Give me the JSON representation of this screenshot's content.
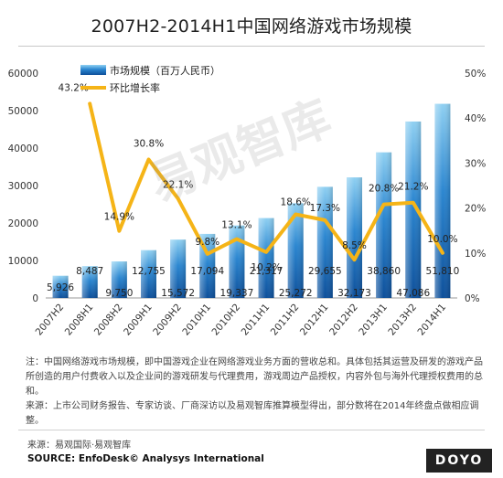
{
  "title": "2007H2-2014H1中国网络游戏市场规模",
  "watermark": "易观智库",
  "notes": [
    "注：中国网络游戏市场规模，即中国游戏企业在网络游戏业务方面的营收总和。具体包括其运营及研发的游戏产品所创造的用户付费收入以及企业间的游戏研发与代理费用，游戏周边产品授权，内容外包与海外代理授权费用的总和。",
    "来源：上市公司财务报告、专家访谈、厂商深访以及易观智库推算模型得出，部分数将在2014年终盘点做相应调整。"
  ],
  "source_cn": "来源：易观国际·易观智库",
  "source_en": "SOURCE: EnfoDesk© Analysys International",
  "logo": "DOYO",
  "chart_data": {
    "type": "bar",
    "categories": [
      "2007H2",
      "2008H1",
      "2008H2",
      "2009H1",
      "2009H2",
      "2010H1",
      "2010H2",
      "2011H1",
      "2011H2",
      "2012H1",
      "2012H2",
      "2013H1",
      "2013H2",
      "2014H1"
    ],
    "series": [
      {
        "name": "市场规模（百万人民币）",
        "type": "bar",
        "axis": "left",
        "values": [
          5926,
          8487,
          9750,
          12755,
          15572,
          17094,
          19337,
          21317,
          25272,
          29655,
          32173,
          38860,
          47086,
          51810
        ],
        "labels": [
          "5,926",
          "8,487",
          "9,750",
          "12,755",
          "15,572",
          "17,094",
          "19,337",
          "21,317",
          "25,272",
          "29,655",
          "32,173",
          "38,860",
          "47,086",
          "51,810"
        ]
      },
      {
        "name": "环比增长率",
        "type": "line",
        "axis": "right",
        "values": [
          null,
          43.2,
          14.9,
          30.8,
          22.1,
          9.8,
          13.1,
          10.2,
          18.6,
          17.3,
          8.5,
          20.8,
          21.2,
          10.0
        ],
        "labels": [
          "",
          "43.2%",
          "14.9%",
          "30.8%",
          "22.1%",
          "9.8%",
          "13.1%",
          "10.2%",
          "18.6%",
          "17.3%",
          "8.5%",
          "20.8%",
          "21.2%",
          "10.0%"
        ]
      }
    ],
    "y_left": {
      "min": 0,
      "max": 60000,
      "ticks": [
        "0",
        "10000",
        "20000",
        "30000",
        "40000",
        "50000",
        "60000"
      ]
    },
    "y_right": {
      "min": 0,
      "max": 50,
      "ticks": [
        "0%",
        "10%",
        "20%",
        "30%",
        "40%",
        "50%"
      ]
    },
    "legend": "top-left",
    "grid": false,
    "colors": {
      "bar_top": "#8fd0f2",
      "bar_mid": "#2b86d0",
      "bar_bottom": "#0d4f9a",
      "line": "#f5b417"
    }
  }
}
